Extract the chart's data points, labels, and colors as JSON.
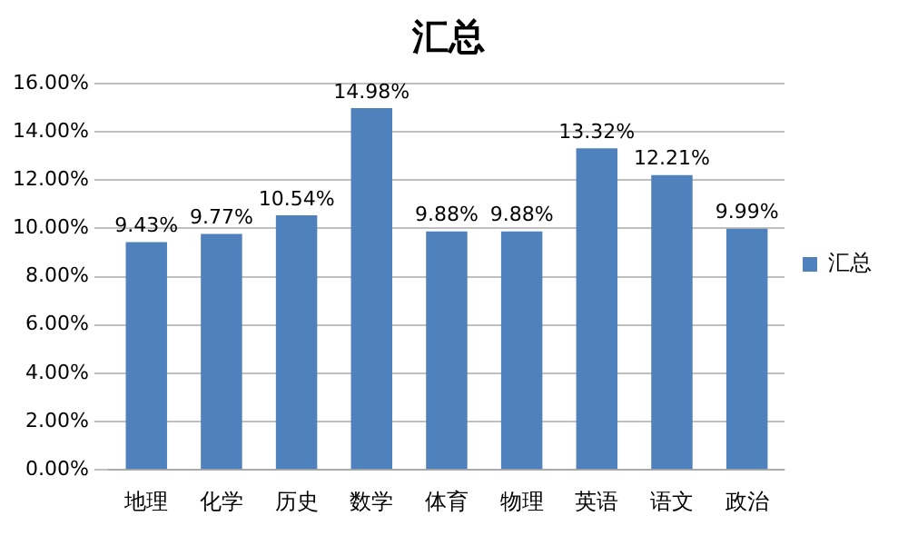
{
  "chart_data": {
    "type": "bar",
    "title": "汇总",
    "categories": [
      "地理",
      "化学",
      "历史",
      "数学",
      "体育",
      "物理",
      "英语",
      "语文",
      "政治"
    ],
    "series": [
      {
        "name": "汇总",
        "color": "#4f81bd",
        "values": [
          9.43,
          9.77,
          10.54,
          14.98,
          9.88,
          9.88,
          13.32,
          12.21,
          9.99
        ],
        "value_labels": [
          "9.43%",
          "9.77%",
          "10.54%",
          "14.98%",
          "9.88%",
          "9.88%",
          "13.32%",
          "12.21%",
          "9.99%"
        ]
      }
    ],
    "ylim": [
      0,
      16
    ],
    "yticks": [
      {
        "value": 0,
        "label": "0.00%"
      },
      {
        "value": 2,
        "label": "2.00%"
      },
      {
        "value": 4,
        "label": "4.00%"
      },
      {
        "value": 6,
        "label": "6.00%"
      },
      {
        "value": 8,
        "label": "8.00%"
      },
      {
        "value": 10,
        "label": "10.00%"
      },
      {
        "value": 12,
        "label": "12.00%"
      },
      {
        "value": 14,
        "label": "14.00%"
      },
      {
        "value": 16,
        "label": "16.00%"
      }
    ],
    "grid": "y",
    "legend": "right"
  }
}
